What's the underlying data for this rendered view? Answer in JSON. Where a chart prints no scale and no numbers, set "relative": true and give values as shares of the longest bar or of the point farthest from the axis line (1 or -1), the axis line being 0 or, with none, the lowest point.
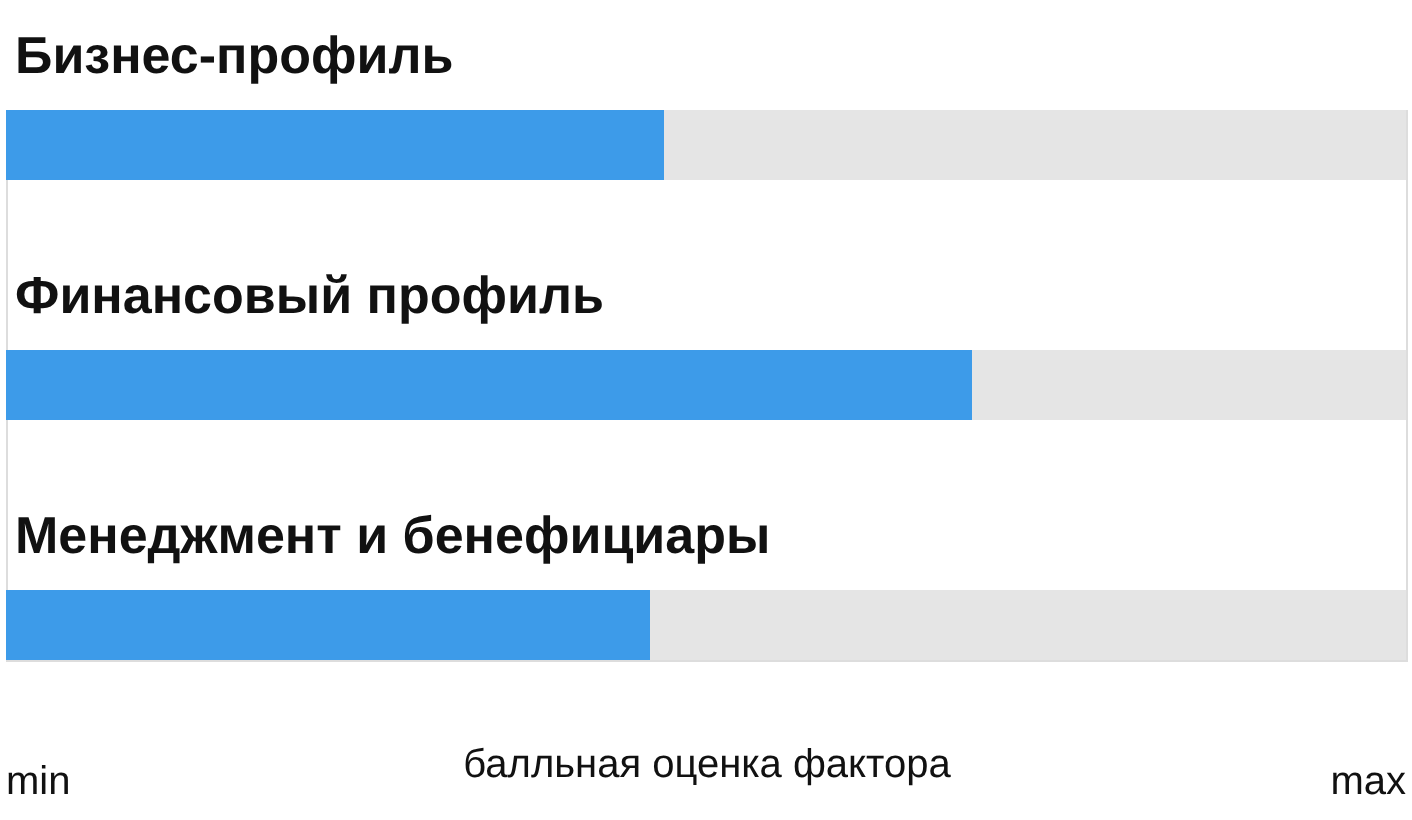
{
  "chart_data": {
    "type": "bar",
    "orientation": "horizontal",
    "stacked": true,
    "relative": true,
    "categories": [
      "Бизнес-профиль",
      "Финансовый профиль",
      "Менеджмент и бенефициары"
    ],
    "series": [
      {
        "color": "#3d9be9",
        "values": [
          0.47,
          0.69,
          0.46
        ]
      },
      {
        "color": "#e5e5e5",
        "values": [
          0.53,
          0.31,
          0.54
        ]
      }
    ],
    "xlabel": "балльная оценка фактора",
    "annotations": [
      "min",
      "max"
    ]
  }
}
